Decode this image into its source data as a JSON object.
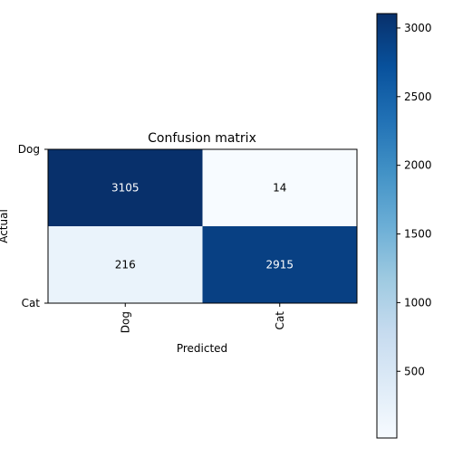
{
  "chart_data": {
    "type": "heatmap",
    "title": "Confusion matrix",
    "xlabel": "Predicted",
    "ylabel": "Actual",
    "x_categories": [
      "Dog",
      "Cat"
    ],
    "y_categories": [
      "Dog",
      "Cat"
    ],
    "values": [
      [
        3105,
        14
      ],
      [
        216,
        2915
      ]
    ],
    "colormap": "Blues",
    "colorbar": {
      "vmin": 14,
      "vmax": 3105,
      "ticks": [
        500,
        1000,
        1500,
        2000,
        2500,
        3000
      ]
    }
  }
}
